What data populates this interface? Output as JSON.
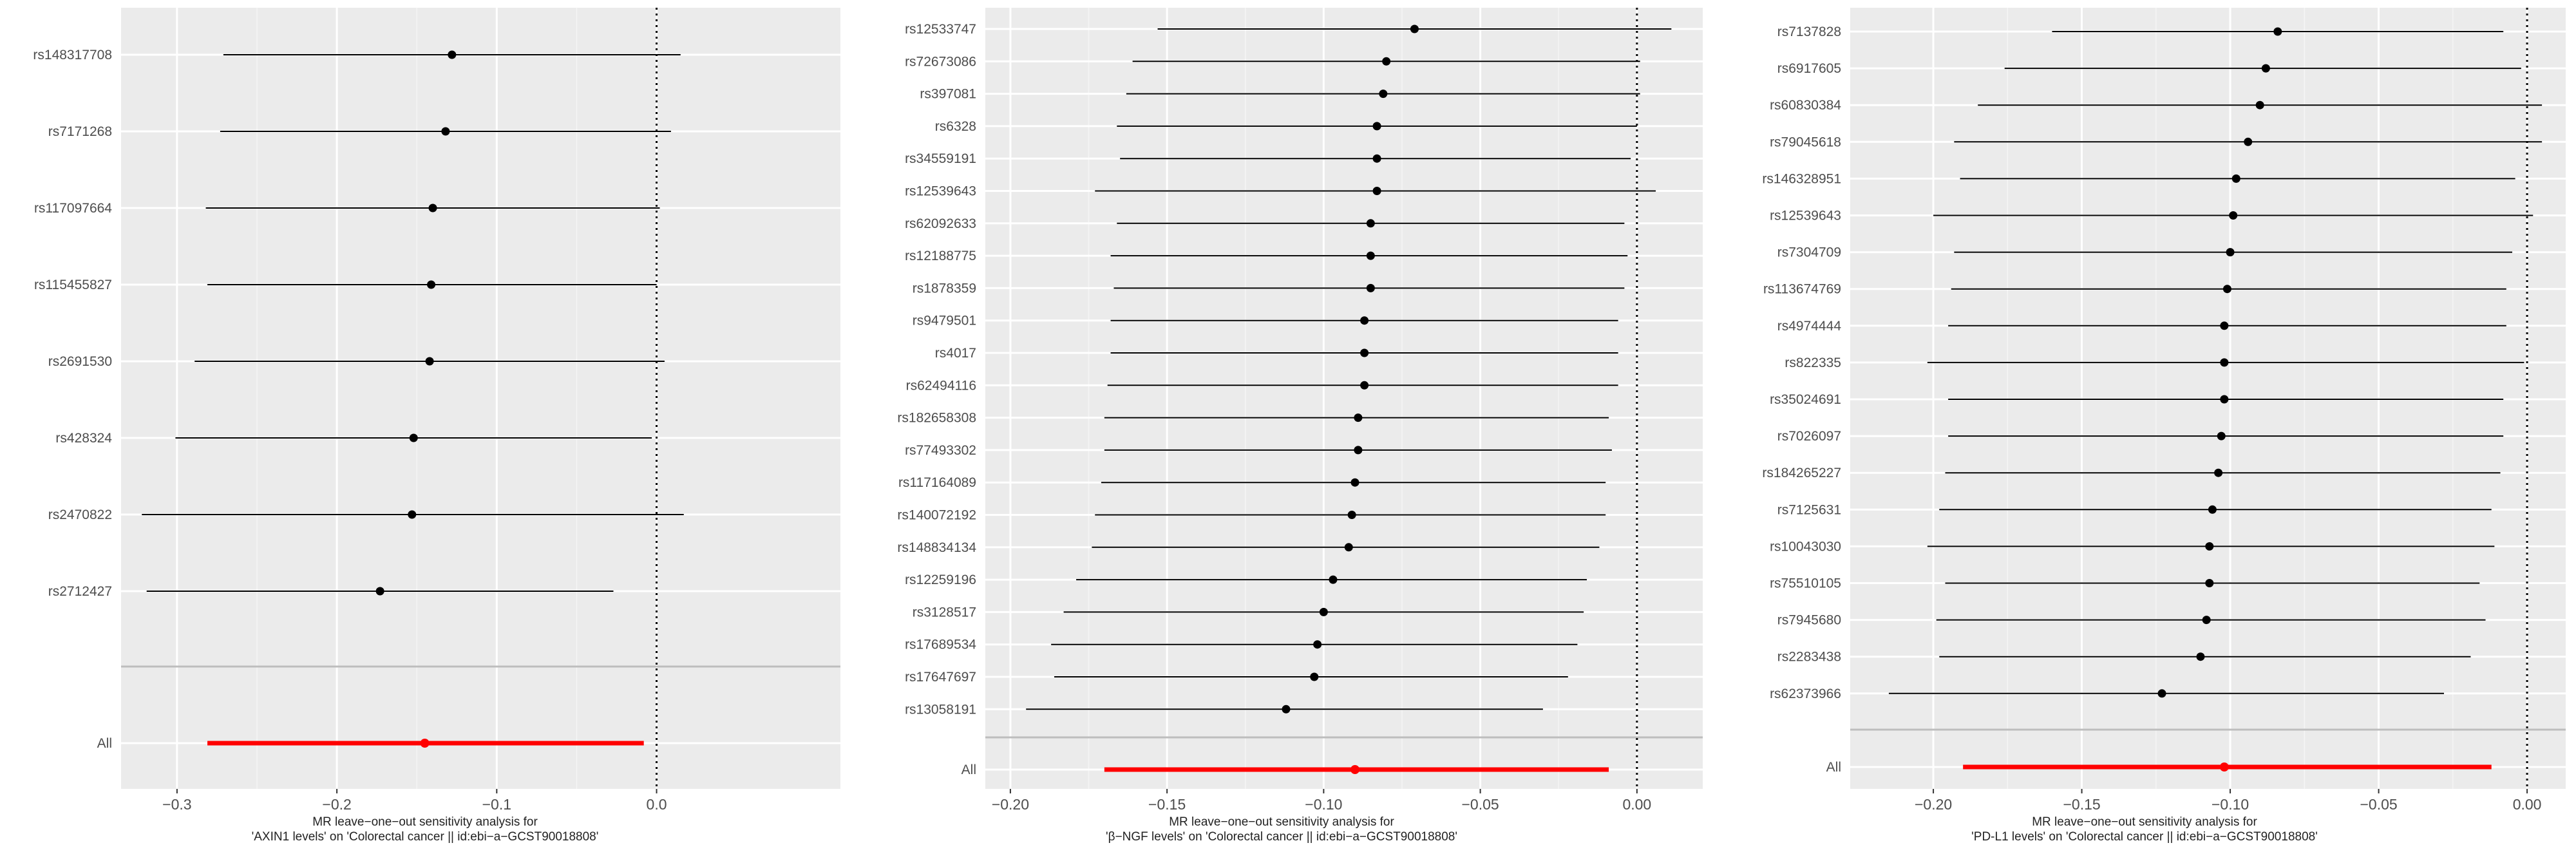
{
  "chart_data": [
    {
      "type": "forest",
      "title_line1": "MR leave−one−out sensitivity analysis for",
      "title_line2": "'AXIN1 levels' on 'Colorectal cancer || id:ebi−a−GCST90018808'",
      "xlim": [
        -0.335,
        0.115
      ],
      "xticks": [
        -0.3,
        -0.2,
        -0.1,
        0.0
      ],
      "xtick_labels": [
        "−0.3",
        "−0.2",
        "−0.1",
        "0.0"
      ],
      "snps": [
        {
          "label": "rs148317708",
          "b": -0.128,
          "lo": -0.271,
          "hi": 0.015
        },
        {
          "label": "rs7171268",
          "b": -0.132,
          "lo": -0.273,
          "hi": 0.009
        },
        {
          "label": "rs117097664",
          "b": -0.14,
          "lo": -0.282,
          "hi": 0.002
        },
        {
          "label": "rs115455827",
          "b": -0.141,
          "lo": -0.281,
          "hi": 0.0
        },
        {
          "label": "rs2691530",
          "b": -0.142,
          "lo": -0.289,
          "hi": 0.005
        },
        {
          "label": "rs428324",
          "b": -0.152,
          "lo": -0.301,
          "hi": -0.003
        },
        {
          "label": "rs2470822",
          "b": -0.153,
          "lo": -0.322,
          "hi": 0.017
        },
        {
          "label": "rs2712427",
          "b": -0.173,
          "lo": -0.319,
          "hi": -0.027
        }
      ],
      "all": {
        "label": "All",
        "b": -0.145,
        "lo": -0.281,
        "hi": -0.008
      }
    },
    {
      "type": "forest",
      "title_line1": "MR leave−one−out sensitivity analysis for",
      "title_line2": "'β−NGF levels' on 'Colorectal cancer || id:ebi−a−GCST90018808'",
      "xlim": [
        -0.208,
        0.021
      ],
      "xticks": [
        -0.2,
        -0.15,
        -0.1,
        -0.05,
        0.0
      ],
      "xtick_labels": [
        "−0.20",
        "−0.15",
        "−0.10",
        "−0.05",
        "0.00"
      ],
      "snps": [
        {
          "label": "rs12533747",
          "b": -0.071,
          "lo": -0.153,
          "hi": 0.011
        },
        {
          "label": "rs72673086",
          "b": -0.08,
          "lo": -0.161,
          "hi": 0.001
        },
        {
          "label": "rs397081",
          "b": -0.081,
          "lo": -0.163,
          "hi": 0.001
        },
        {
          "label": "rs6328",
          "b": -0.083,
          "lo": -0.166,
          "hi": 0.0
        },
        {
          "label": "rs34559191",
          "b": -0.083,
          "lo": -0.165,
          "hi": -0.002
        },
        {
          "label": "rs12539643",
          "b": -0.083,
          "lo": -0.173,
          "hi": 0.006
        },
        {
          "label": "rs62092633",
          "b": -0.085,
          "lo": -0.166,
          "hi": -0.004
        },
        {
          "label": "rs12188775",
          "b": -0.085,
          "lo": -0.168,
          "hi": -0.003
        },
        {
          "label": "rs1878359",
          "b": -0.085,
          "lo": -0.167,
          "hi": -0.004
        },
        {
          "label": "rs9479501",
          "b": -0.087,
          "lo": -0.168,
          "hi": -0.006
        },
        {
          "label": "rs4017",
          "b": -0.087,
          "lo": -0.168,
          "hi": -0.006
        },
        {
          "label": "rs62494116",
          "b": -0.087,
          "lo": -0.169,
          "hi": -0.006
        },
        {
          "label": "rs182658308",
          "b": -0.089,
          "lo": -0.17,
          "hi": -0.009
        },
        {
          "label": "rs77493302",
          "b": -0.089,
          "lo": -0.17,
          "hi": -0.008
        },
        {
          "label": "rs117164089",
          "b": -0.09,
          "lo": -0.171,
          "hi": -0.01
        },
        {
          "label": "rs140072192",
          "b": -0.091,
          "lo": -0.173,
          "hi": -0.01
        },
        {
          "label": "rs148834134",
          "b": -0.092,
          "lo": -0.174,
          "hi": -0.012
        },
        {
          "label": "rs12259196",
          "b": -0.097,
          "lo": -0.179,
          "hi": -0.016
        },
        {
          "label": "rs3128517",
          "b": -0.1,
          "lo": -0.183,
          "hi": -0.017
        },
        {
          "label": "rs17689534",
          "b": -0.102,
          "lo": -0.187,
          "hi": -0.019
        },
        {
          "label": "rs17647697",
          "b": -0.103,
          "lo": -0.186,
          "hi": -0.022
        },
        {
          "label": "rs13058191",
          "b": -0.112,
          "lo": -0.195,
          "hi": -0.03
        }
      ],
      "all": {
        "label": "All",
        "b": -0.09,
        "lo": -0.17,
        "hi": -0.009
      }
    },
    {
      "type": "forest",
      "title_line1": "MR leave−one−out sensitivity analysis for",
      "title_line2": "'PD-L1 levels' on 'Colorectal cancer || id:ebi−a−GCST90018808'",
      "xlim": [
        -0.228,
        0.013
      ],
      "xticks": [
        -0.2,
        -0.15,
        -0.1,
        -0.05,
        0.0
      ],
      "xtick_labels": [
        "−0.20",
        "−0.15",
        "−0.10",
        "−0.05",
        "0.00"
      ],
      "snps": [
        {
          "label": "rs7137828",
          "b": -0.084,
          "lo": -0.16,
          "hi": -0.008
        },
        {
          "label": "rs6917605",
          "b": -0.088,
          "lo": -0.176,
          "hi": -0.002
        },
        {
          "label": "rs60830384",
          "b": -0.09,
          "lo": -0.185,
          "hi": 0.005
        },
        {
          "label": "rs79045618",
          "b": -0.094,
          "lo": -0.193,
          "hi": 0.005
        },
        {
          "label": "rs146328951",
          "b": -0.098,
          "lo": -0.191,
          "hi": -0.004
        },
        {
          "label": "rs12539643",
          "b": -0.099,
          "lo": -0.2,
          "hi": 0.002
        },
        {
          "label": "rs7304709",
          "b": -0.1,
          "lo": -0.193,
          "hi": -0.005
        },
        {
          "label": "rs113674769",
          "b": -0.101,
          "lo": -0.194,
          "hi": -0.007
        },
        {
          "label": "rs4974444",
          "b": -0.102,
          "lo": -0.195,
          "hi": -0.007
        },
        {
          "label": "rs822335",
          "b": -0.102,
          "lo": -0.202,
          "hi": -0.001
        },
        {
          "label": "rs35024691",
          "b": -0.102,
          "lo": -0.195,
          "hi": -0.008
        },
        {
          "label": "rs7026097",
          "b": -0.103,
          "lo": -0.195,
          "hi": -0.008
        },
        {
          "label": "rs184265227",
          "b": -0.104,
          "lo": -0.196,
          "hi": -0.009
        },
        {
          "label": "rs7125631",
          "b": -0.106,
          "lo": -0.198,
          "hi": -0.012
        },
        {
          "label": "rs10043030",
          "b": -0.107,
          "lo": -0.202,
          "hi": -0.011
        },
        {
          "label": "rs75510105",
          "b": -0.107,
          "lo": -0.196,
          "hi": -0.016
        },
        {
          "label": "rs7945680",
          "b": -0.108,
          "lo": -0.199,
          "hi": -0.014
        },
        {
          "label": "rs2283438",
          "b": -0.11,
          "lo": -0.198,
          "hi": -0.019
        },
        {
          "label": "rs62373966",
          "b": -0.123,
          "lo": -0.215,
          "hi": -0.028
        }
      ],
      "all": {
        "label": "All",
        "b": -0.102,
        "lo": -0.19,
        "hi": -0.012
      }
    }
  ]
}
